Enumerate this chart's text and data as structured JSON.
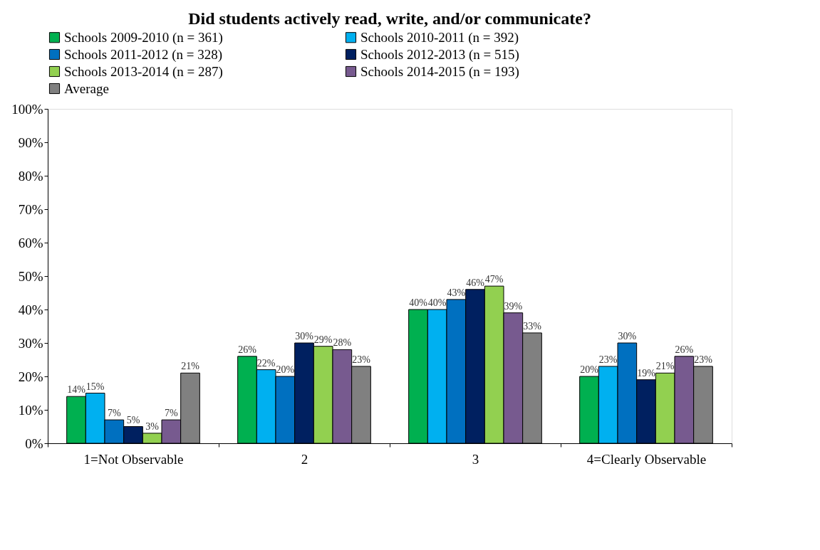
{
  "chart_data": {
    "type": "bar",
    "title": "Did students actively read, write, and/or communicate?",
    "categories": [
      "1=Not Observable",
      "2",
      "3",
      "4=Clearly Observable"
    ],
    "series": [
      {
        "name": "Schools 2009-2010 (n = 361)",
        "color": "#00b050",
        "values": [
          14,
          26,
          40,
          20
        ],
        "value_labels": [
          "14%",
          "26%",
          "40%",
          "20%"
        ]
      },
      {
        "name": "Schools 2010-2011 (n = 392)",
        "color": "#00b0f0",
        "values": [
          15,
          22,
          40,
          23
        ],
        "value_labels": [
          "15%",
          "22%",
          "40%",
          "23%"
        ]
      },
      {
        "name": "Schools 2011-2012 (n = 328)",
        "color": "#0070c0",
        "values": [
          7,
          20,
          43,
          30
        ],
        "value_labels": [
          "7%",
          "20%",
          "43%",
          "30%"
        ]
      },
      {
        "name": "Schools 2012-2013 (n = 515)",
        "color": "#002060",
        "values": [
          5,
          30,
          46,
          19
        ],
        "value_labels": [
          "5%",
          "30%",
          "46%",
          "19%"
        ]
      },
      {
        "name": "Schools 2013-2014 (n = 287)",
        "color": "#92d050",
        "values": [
          3,
          29,
          47,
          21
        ],
        "value_labels": [
          "3%",
          "29%",
          "47%",
          "21%"
        ]
      },
      {
        "name": "Schools 2014-2015 (n = 193)",
        "color": "#775a8f",
        "values": [
          7,
          28,
          39,
          26
        ],
        "value_labels": [
          "7%",
          "28%",
          "39%",
          "26%"
        ]
      },
      {
        "name": "Average",
        "color": "#808080",
        "values": [
          21,
          23,
          33,
          23
        ],
        "value_labels": [
          "21%",
          "23%",
          "33%",
          "23%"
        ]
      }
    ],
    "ylim": [
      0,
      100
    ],
    "yticks": [
      {
        "value": 0,
        "label": "0%"
      },
      {
        "value": 10,
        "label": "10%"
      },
      {
        "value": 20,
        "label": "20%"
      },
      {
        "value": 30,
        "label": "30%"
      },
      {
        "value": 40,
        "label": "40%"
      },
      {
        "value": 50,
        "label": "50%"
      },
      {
        "value": 60,
        "label": "60%"
      },
      {
        "value": 70,
        "label": "70%"
      },
      {
        "value": 80,
        "label": "80%"
      },
      {
        "value": 90,
        "label": "90%"
      },
      {
        "value": 100,
        "label": "100%"
      }
    ],
    "grid": false,
    "legend": "top"
  }
}
